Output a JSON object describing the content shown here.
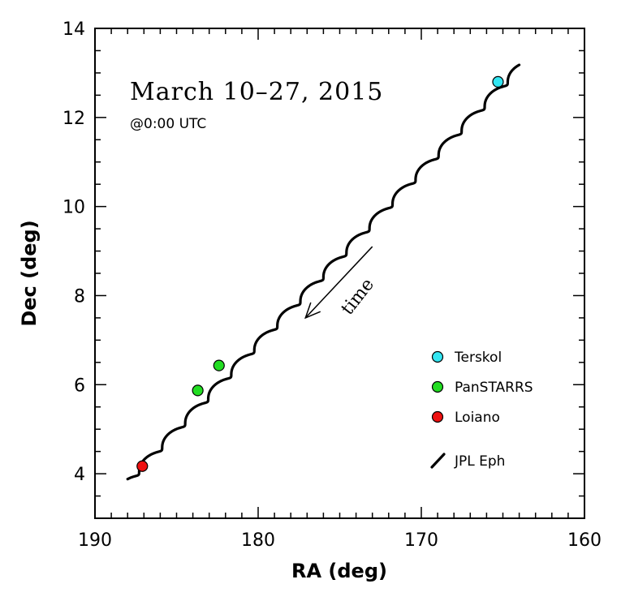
{
  "chart_data": {
    "type": "line",
    "title": "March 10–27, 2015",
    "subtitle": "@0:00 UTC",
    "xlabel": "RA (deg)",
    "ylabel": "Dec (deg)",
    "xlim": [
      190,
      160
    ],
    "ylim": [
      3,
      14
    ],
    "x_ticks": [
      190,
      180,
      170,
      160
    ],
    "y_ticks": [
      4,
      6,
      8,
      10,
      12,
      14
    ],
    "x_tick_labels": [
      "190",
      "180",
      "170",
      "160"
    ],
    "y_tick_labels": [
      "4",
      "6",
      "8",
      "10",
      "12",
      "14"
    ],
    "x_minor_step": 1,
    "y_minor_step": 0.5,
    "grid": false,
    "legend_position": "lower-right",
    "annotation": {
      "text": "time",
      "arrow_from": [
        173,
        9.1
      ],
      "arrow_to": [
        177.1,
        7.5
      ]
    },
    "ephemeris": {
      "name": "JPL Eph",
      "start": [
        188.0,
        3.82
      ],
      "end": [
        164.0,
        13.12
      ],
      "oscillations": 17,
      "wiggle_x": 0.22,
      "wiggle_y": 0.06,
      "color": "#000000"
    },
    "series": [
      {
        "name": "Terskol",
        "color": "#33e6f2",
        "points": [
          {
            "x": 165.3,
            "y": 12.8
          }
        ]
      },
      {
        "name": "PanSTARRS",
        "color": "#22dd22",
        "points": [
          {
            "x": 183.7,
            "y": 5.87
          },
          {
            "x": 182.4,
            "y": 6.43
          }
        ]
      },
      {
        "name": "Loiano",
        "color": "#ee1111",
        "points": [
          {
            "x": 187.1,
            "y": 4.17
          }
        ]
      }
    ]
  }
}
